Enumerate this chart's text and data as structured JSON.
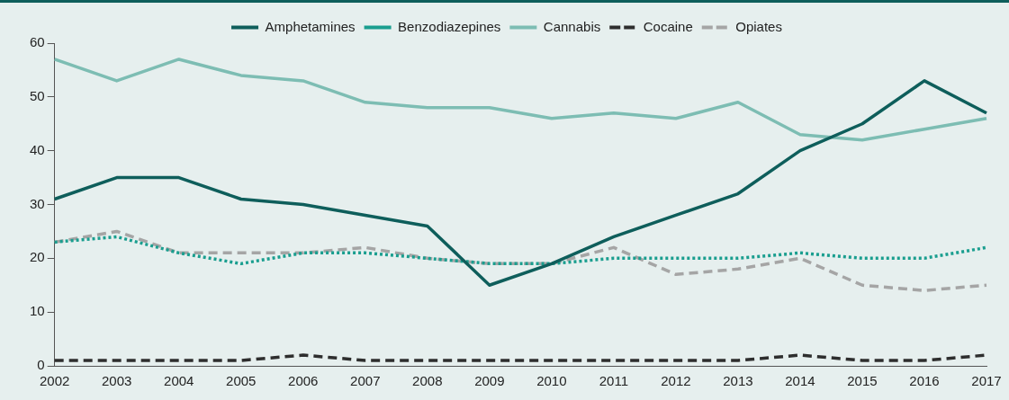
{
  "chart_data": {
    "type": "line",
    "categories": [
      "2002",
      "2003",
      "2004",
      "2005",
      "2006",
      "2007",
      "2008",
      "2009",
      "2010",
      "2011",
      "2012",
      "2013",
      "2014",
      "2015",
      "2016",
      "2017"
    ],
    "series": [
      {
        "name": "Amphetamines",
        "color": "#0e5e5b",
        "line_style": "solid",
        "values": [
          31,
          35,
          35,
          31,
          30,
          28,
          26,
          15,
          19,
          24,
          28,
          32,
          40,
          45,
          53,
          47
        ]
      },
      {
        "name": "Benzodiazepines",
        "color": "#1a9e8f",
        "line_style": "dotted",
        "values": [
          23,
          24,
          21,
          19,
          21,
          21,
          20,
          19,
          19,
          20,
          20,
          20,
          21,
          20,
          20,
          22
        ]
      },
      {
        "name": "Cannabis",
        "color": "#7dbdb3",
        "line_style": "solid",
        "values": [
          57,
          53,
          57,
          54,
          53,
          49,
          48,
          48,
          46,
          47,
          46,
          49,
          43,
          42,
          44,
          46
        ]
      },
      {
        "name": "Cocaine",
        "color": "#2e2e2e",
        "line_style": "dashed",
        "values": [
          1,
          1,
          1,
          1,
          2,
          1,
          1,
          1,
          1,
          1,
          1,
          1,
          2,
          1,
          1,
          2
        ]
      },
      {
        "name": "Opiates",
        "color": "#a5a5a5",
        "line_style": "dashed",
        "values": [
          23,
          25,
          21,
          21,
          21,
          22,
          20,
          19,
          19,
          22,
          17,
          18,
          20,
          15,
          14,
          15
        ]
      }
    ],
    "ylim": [
      0,
      60
    ],
    "yticks": [
      0,
      10,
      20,
      30,
      40,
      50,
      60
    ],
    "grid": false,
    "legend": "top",
    "marker": "none"
  }
}
